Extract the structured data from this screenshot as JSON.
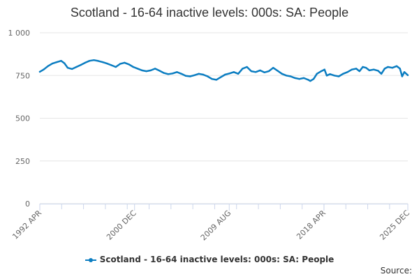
{
  "chart_data": {
    "type": "line",
    "title": "Scotland - 16-64 inactive levels: 000s: SA: People",
    "xlabel": "",
    "ylabel": "",
    "ylim": [
      0,
      1000
    ],
    "yticks": [
      0,
      250,
      500,
      750,
      1000
    ],
    "ytick_labels": [
      "0",
      "250",
      "500",
      "750",
      "1 000"
    ],
    "x_range": [
      1992.25,
      2025.92
    ],
    "xticks": [
      {
        "label": "1992 APR",
        "x": 1992.25
      },
      {
        "label": "2000 DEC",
        "x": 2000.92
      },
      {
        "label": "2009 AUG",
        "x": 2009.58
      },
      {
        "label": "2018 APR",
        "x": 2018.25
      },
      {
        "label": "2025 DEC",
        "x": 2025.92
      }
    ],
    "grid": true,
    "legend_position": "bottom-center",
    "series": [
      {
        "name": "Scotland - 16-64 inactive levels: 000s: SA: People",
        "color": "#0b7dc1",
        "points": [
          [
            1992.25,
            772
          ],
          [
            1992.6,
            785
          ],
          [
            1993.0,
            805
          ],
          [
            1993.4,
            820
          ],
          [
            1993.8,
            828
          ],
          [
            1994.2,
            836
          ],
          [
            1994.5,
            822
          ],
          [
            1994.8,
            795
          ],
          [
            1995.2,
            788
          ],
          [
            1995.6,
            800
          ],
          [
            1996.0,
            812
          ],
          [
            1996.4,
            825
          ],
          [
            1996.8,
            836
          ],
          [
            1997.2,
            840
          ],
          [
            1997.6,
            835
          ],
          [
            1998.0,
            828
          ],
          [
            1998.4,
            820
          ],
          [
            1998.8,
            810
          ],
          [
            1999.2,
            800
          ],
          [
            1999.6,
            818
          ],
          [
            2000.0,
            825
          ],
          [
            2000.4,
            815
          ],
          [
            2000.8,
            800
          ],
          [
            2001.2,
            790
          ],
          [
            2001.6,
            780
          ],
          [
            2002.0,
            775
          ],
          [
            2002.4,
            780
          ],
          [
            2002.8,
            790
          ],
          [
            2003.2,
            778
          ],
          [
            2003.6,
            765
          ],
          [
            2004.0,
            758
          ],
          [
            2004.4,
            762
          ],
          [
            2004.8,
            770
          ],
          [
            2005.2,
            760
          ],
          [
            2005.6,
            748
          ],
          [
            2006.0,
            745
          ],
          [
            2006.4,
            752
          ],
          [
            2006.8,
            760
          ],
          [
            2007.2,
            755
          ],
          [
            2007.6,
            745
          ],
          [
            2008.0,
            730
          ],
          [
            2008.4,
            725
          ],
          [
            2008.8,
            740
          ],
          [
            2009.2,
            755
          ],
          [
            2009.6,
            762
          ],
          [
            2010.0,
            770
          ],
          [
            2010.4,
            760
          ],
          [
            2010.8,
            790
          ],
          [
            2011.2,
            800
          ],
          [
            2011.6,
            775
          ],
          [
            2012.0,
            770
          ],
          [
            2012.4,
            780
          ],
          [
            2012.8,
            768
          ],
          [
            2013.2,
            775
          ],
          [
            2013.6,
            795
          ],
          [
            2014.0,
            778
          ],
          [
            2014.4,
            760
          ],
          [
            2014.8,
            750
          ],
          [
            2015.2,
            745
          ],
          [
            2015.6,
            735
          ],
          [
            2016.0,
            730
          ],
          [
            2016.4,
            735
          ],
          [
            2016.8,
            725
          ],
          [
            2017.0,
            718
          ],
          [
            2017.3,
            730
          ],
          [
            2017.6,
            760
          ],
          [
            2018.0,
            775
          ],
          [
            2018.3,
            785
          ],
          [
            2018.5,
            750
          ],
          [
            2018.8,
            758
          ],
          [
            2019.2,
            750
          ],
          [
            2019.6,
            745
          ],
          [
            2020.0,
            760
          ],
          [
            2020.4,
            770
          ],
          [
            2020.8,
            785
          ],
          [
            2021.2,
            790
          ],
          [
            2021.5,
            775
          ],
          [
            2021.8,
            800
          ],
          [
            2022.1,
            795
          ],
          [
            2022.4,
            780
          ],
          [
            2022.8,
            785
          ],
          [
            2023.2,
            778
          ],
          [
            2023.5,
            760
          ],
          [
            2023.8,
            790
          ],
          [
            2024.1,
            800
          ],
          [
            2024.5,
            795
          ],
          [
            2024.9,
            805
          ],
          [
            2025.2,
            790
          ],
          [
            2025.4,
            745
          ],
          [
            2025.6,
            770
          ],
          [
            2025.92,
            752
          ]
        ]
      }
    ]
  },
  "source_label": "Source:"
}
